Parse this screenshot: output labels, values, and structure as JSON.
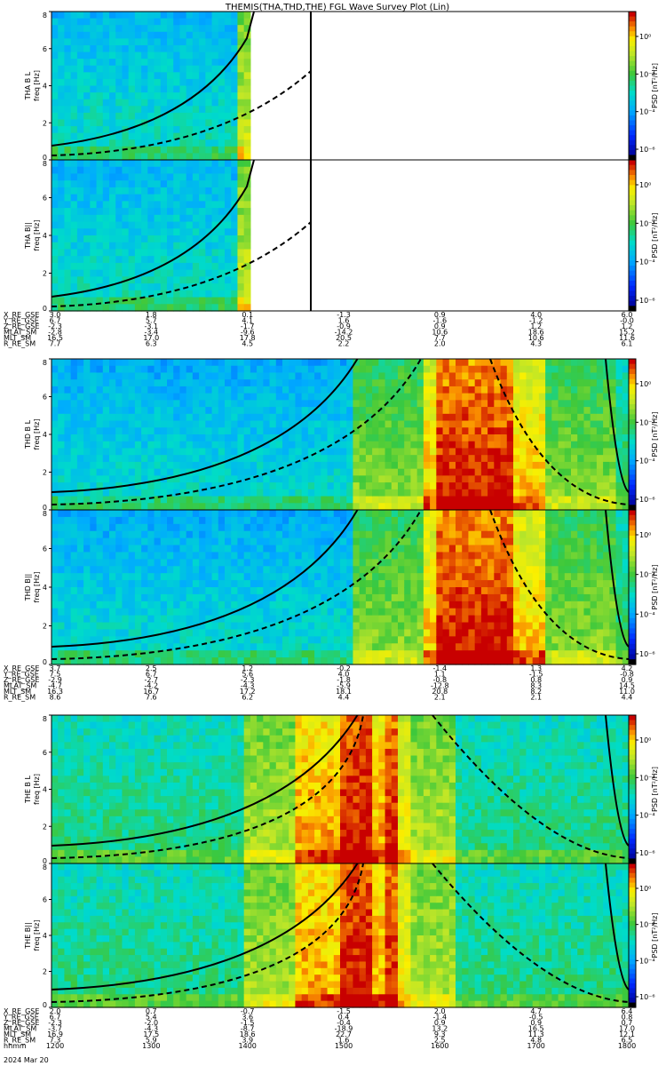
{
  "title": "THEMIS(THA,THD,THE) FGL Wave Survey Plot (Lin)",
  "colorbar_label": "PSD [nT²/Hz]",
  "colorbar_ticks": [
    "10⁰",
    "10⁻²",
    "10⁻⁴",
    "10⁻⁶"
  ],
  "chart_data": [
    {
      "type": "heatmap",
      "probe": "THA",
      "panels": [
        {
          "ylabel_probe": "THA B L",
          "ylabel_unit": "freq [Hz]",
          "ylim": [
            0,
            8
          ],
          "yticks": [
            "0",
            "2",
            "4",
            "6",
            "8"
          ]
        },
        {
          "ylabel_probe": "THA B||",
          "ylabel_unit": "freq [Hz]",
          "ylim": [
            0,
            8
          ],
          "yticks": [
            "0",
            "2",
            "4",
            "6",
            "8"
          ]
        }
      ],
      "data_end_fraction": 0.33,
      "ephemeris": [
        {
          "label": "X_RE_GSE",
          "values": [
            "3.0",
            "1.8",
            "0.1",
            "-1.3",
            "0.9",
            "4.0",
            "6.0"
          ]
        },
        {
          "label": "Y_RE_GSE",
          "values": [
            "6.7",
            "5.7",
            "4.1",
            "1.6",
            "-1.6",
            "-1.2",
            "-0.0"
          ]
        },
        {
          "label": "Z_RE_GSE",
          "values": [
            "-2.3",
            "-3.1",
            "-1.7",
            "-0.9",
            "0.9",
            "1.2",
            "1.2"
          ]
        },
        {
          "label": "MLAT_SM",
          "values": [
            "-2.8",
            "-3.4",
            "-9.6",
            "-14.2",
            "10.6",
            "18.6",
            "15.2"
          ]
        },
        {
          "label": "MLT_SM",
          "values": [
            "16.5",
            "17.0",
            "17.8",
            "20.5",
            "7.7",
            "10.6",
            "11.6"
          ]
        },
        {
          "label": "R_RE_SM",
          "values": [
            "7.7",
            "6.3",
            "4.5",
            "2.2",
            "2.0",
            "4.3",
            "6.1"
          ]
        }
      ]
    },
    {
      "type": "heatmap",
      "probe": "THD",
      "panels": [
        {
          "ylabel_probe": "THD B L",
          "ylabel_unit": "freq [Hz]",
          "ylim": [
            0,
            8
          ],
          "yticks": [
            "0",
            "2",
            "4",
            "6",
            "8"
          ]
        },
        {
          "ylabel_probe": "THD B||",
          "ylabel_unit": "freq [Hz]",
          "ylim": [
            0,
            8
          ],
          "yticks": [
            "0",
            "2",
            "4",
            "6",
            "8"
          ]
        }
      ],
      "ephemeris": [
        {
          "label": "X_RE_GSE",
          "values": [
            "3.7",
            "2.5",
            "1.2",
            "-0.2",
            "-1.4",
            "1.3",
            "4.2"
          ]
        },
        {
          "label": "Y_RE_GSE",
          "values": [
            "7.5",
            "6.7",
            "5.6",
            "4.0",
            "1.1",
            "-1.5",
            "-0.8"
          ]
        },
        {
          "label": "Z_RE_GSE",
          "values": [
            "-2.9",
            "-2.7",
            "-2.3",
            "-1.8",
            "-0.8",
            "0.8",
            "0.9"
          ]
        },
        {
          "label": "MLAT_SM",
          "values": [
            "-4.7",
            "-4.2",
            "-4.3",
            "-5.9",
            "-12.8",
            "8.3",
            "14.5"
          ]
        },
        {
          "label": "MLT_SM",
          "values": [
            "16.3",
            "16.7",
            "17.2",
            "18.1",
            "20.8",
            "8.2",
            "11.0"
          ]
        },
        {
          "label": "R_RE_SM",
          "values": [
            "8.6",
            "7.6",
            "6.2",
            "4.4",
            "2.1",
            "2.1",
            "4.4"
          ]
        }
      ]
    },
    {
      "type": "heatmap",
      "probe": "THE",
      "panels": [
        {
          "ylabel_probe": "THE B L",
          "ylabel_unit": "freq [Hz]",
          "ylim": [
            0,
            8
          ],
          "yticks": [
            "0",
            "2",
            "4",
            "6",
            "8"
          ]
        },
        {
          "ylabel_probe": "THE B||",
          "ylabel_unit": "freq [Hz]",
          "ylim": [
            0,
            8
          ],
          "yticks": [
            "0",
            "2",
            "4",
            "6",
            "8"
          ]
        }
      ],
      "ephemeris": [
        {
          "label": "X_RE_GSE",
          "values": [
            "2.0",
            "0.7",
            "-0.7",
            "-1.5",
            "2.0",
            "4.7",
            "6.4"
          ]
        },
        {
          "label": "Y_RE_GSE",
          "values": [
            "6.7",
            "5.4",
            "3.6",
            "0.4",
            "-1.4",
            "-0.5",
            "0.8"
          ]
        },
        {
          "label": "Z_RE_GSE",
          "values": [
            "-2.3",
            "-2.0",
            "-1.5",
            "-0.4",
            "0.9",
            "0.9",
            "0.7"
          ]
        },
        {
          "label": "MLAT_SM",
          "values": [
            "-3.7",
            "-4.3",
            "-8.7",
            "-18.9",
            "13.2",
            "16.5",
            "17.0"
          ]
        },
        {
          "label": "MLT_SM",
          "values": [
            "16.9",
            "17.5",
            "18.6",
            "22.7",
            "9.3",
            "11.3",
            "12.1"
          ]
        },
        {
          "label": "R_RE_SM",
          "values": [
            "7.3",
            "5.9",
            "3.9",
            "1.6",
            "2.5",
            "4.8",
            "6.5"
          ]
        },
        {
          "label": "hhmm",
          "values": [
            "1200",
            "1300",
            "1400",
            "1500",
            "1600",
            "1700",
            "1800"
          ]
        }
      ],
      "date": "2024 Mar 20"
    }
  ]
}
